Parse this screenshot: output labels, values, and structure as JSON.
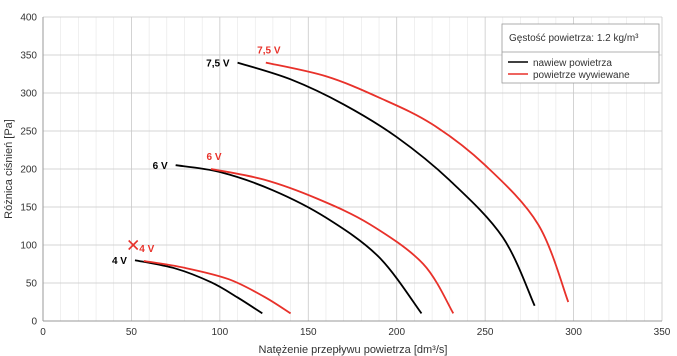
{
  "chart_data": {
    "type": "line",
    "xlabel": "Natężenie przepływu powietrza [dm³/s]",
    "ylabel": "Różnica ciśnień [Pa]",
    "xlim": [
      0,
      350
    ],
    "ylim": [
      0,
      400
    ],
    "x_ticks": [
      0,
      50,
      100,
      150,
      200,
      250,
      300,
      350
    ],
    "y_ticks": [
      0,
      50,
      100,
      150,
      200,
      250,
      300,
      350,
      400
    ],
    "grid": true,
    "legend_position": "top-right",
    "legend_title": "Gęstość powietrza: 1.2 kg/m³",
    "colors": {
      "supply": "#000000",
      "exhaust": "#e8312a",
      "grid_major": "#c8c8c8",
      "grid_minor": "#e6e6e6",
      "marker": "#e8312a"
    },
    "series": [
      {
        "name": "nawiew powietrza",
        "color": "#000000",
        "curves": [
          {
            "label": "4 V",
            "points": [
              [
                52,
                80
              ],
              [
                75,
                69
              ],
              [
                95,
                51
              ],
              [
                110,
                31
              ],
              [
                124,
                10
              ]
            ]
          },
          {
            "label": "6 V",
            "points": [
              [
                75,
                205
              ],
              [
                100,
                196
              ],
              [
                130,
                172
              ],
              [
                160,
                136
              ],
              [
                190,
                84
              ],
              [
                214,
                10
              ]
            ]
          },
          {
            "label": "7,5 V",
            "points": [
              [
                110,
                340
              ],
              [
                140,
                318
              ],
              [
                170,
                285
              ],
              [
                200,
                242
              ],
              [
                230,
                185
              ],
              [
                260,
                110
              ],
              [
                278,
                20
              ]
            ]
          }
        ]
      },
      {
        "name": "powietrze wywiewane",
        "color": "#e8312a",
        "curves": [
          {
            "label": "4 V",
            "points": [
              [
                57,
                79
              ],
              [
                80,
                70
              ],
              [
                105,
                55
              ],
              [
                125,
                32
              ],
              [
                140,
                10
              ]
            ]
          },
          {
            "label": "6 V",
            "points": [
              [
                95,
                200
              ],
              [
                125,
                186
              ],
              [
                155,
                161
              ],
              [
                185,
                127
              ],
              [
                215,
                75
              ],
              [
                232,
                10
              ]
            ]
          },
          {
            "label": "7,5 V",
            "points": [
              [
                126,
                340
              ],
              [
                160,
                322
              ],
              [
                190,
                294
              ],
              [
                220,
                259
              ],
              [
                250,
                205
              ],
              [
                280,
                127
              ],
              [
                297,
                25
              ]
            ]
          }
        ]
      }
    ],
    "annotations": [
      {
        "type": "cross",
        "x": 51,
        "y": 100,
        "color": "#e8312a"
      }
    ]
  }
}
